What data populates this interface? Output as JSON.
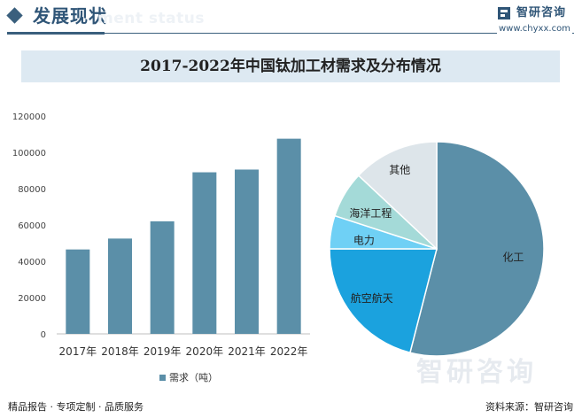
{
  "header": {
    "title": "发展现状",
    "ghost_text": "ment status",
    "brand": "智研咨询",
    "url": "www.chyxx.com"
  },
  "chart_title": "2017-2022年中国钛加工材需求及分布情况",
  "chart_data": [
    {
      "type": "bar",
      "categories": [
        "2017年",
        "2018年",
        "2019年",
        "2020年",
        "2021年",
        "2022年"
      ],
      "series": [
        {
          "name": "需求（吨）",
          "values": [
            46500,
            52500,
            62000,
            89000,
            90500,
            107500
          ]
        }
      ],
      "ylim": [
        0,
        120000
      ],
      "yticks": [
        0,
        20000,
        40000,
        60000,
        80000,
        100000,
        120000
      ],
      "ytick_labels": [
        "0",
        "20000",
        "40000",
        "60000",
        "80000",
        "100000",
        "120000"
      ],
      "legend_position": "bottom-center",
      "color": "#5b8fa8",
      "grid": false
    },
    {
      "type": "pie",
      "labels": [
        "化工",
        "航空航天",
        "电力",
        "海洋工程",
        "其他"
      ],
      "values": [
        54,
        21,
        5,
        7,
        13
      ],
      "colors": [
        "#5b8fa8",
        "#1ba2de",
        "#6fd0f5",
        "#a4dad8",
        "#dde5ea"
      ]
    }
  ],
  "watermark": "智研咨询",
  "footer": {
    "left": "精品报告 · 专项定制 · 品质服务",
    "right": "资料来源：智研咨询"
  }
}
